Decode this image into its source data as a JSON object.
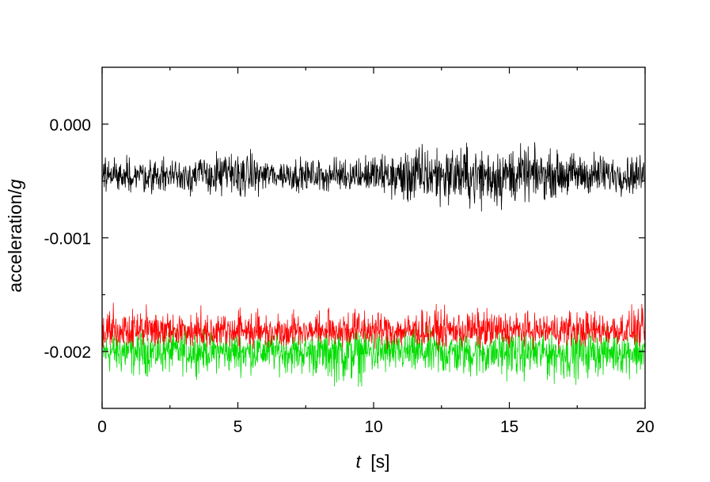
{
  "chart_data": {
    "type": "line",
    "title": "",
    "xlabel_italic": "t",
    "xlabel_unit": "[s]",
    "ylabel_prefix": "acceleration/",
    "ylabel_italic": "g",
    "xlim": [
      0,
      20
    ],
    "ylim": [
      -0.0025,
      0.0005
    ],
    "x_ticks": [
      0,
      5,
      10,
      15,
      20
    ],
    "x_tick_labels": [
      "0",
      "5",
      "10",
      "15",
      "20"
    ],
    "y_ticks": [
      0,
      -0.001,
      -0.002
    ],
    "y_tick_labels": [
      "0.000",
      "-0.001",
      "-0.002"
    ],
    "grid": false,
    "legend": "none",
    "series": [
      {
        "color": "#00dd00",
        "baseline": -0.002,
        "x": [
          0,
          1,
          2,
          3,
          4,
          5,
          6,
          7,
          8,
          9,
          10,
          11,
          12,
          13,
          14,
          15,
          16,
          17,
          18,
          19,
          20
        ],
        "y_max": [
          -0.0018,
          -0.00175,
          -0.0018,
          -0.00175,
          -0.0018,
          -0.0018,
          -0.00178,
          -0.00182,
          -0.0018,
          -0.00175,
          -0.00178,
          -0.0018,
          -0.00178,
          -0.0018,
          -0.0018,
          -0.00178,
          -0.0018,
          -0.00182,
          -0.00178,
          -0.0018,
          -0.00178
        ],
        "y_min": [
          -0.00222,
          -0.00225,
          -0.00222,
          -0.00222,
          -0.0022,
          -0.00222,
          -0.0022,
          -0.00222,
          -0.00225,
          -0.00235,
          -0.00225,
          -0.00222,
          -0.00228,
          -0.00225,
          -0.00228,
          -0.00225,
          -0.00228,
          -0.0023,
          -0.00225,
          -0.00222,
          -0.00225
        ]
      },
      {
        "color": "#ff0000",
        "baseline": -0.00182,
        "x": [
          0,
          1,
          2,
          3,
          4,
          5,
          6,
          7,
          8,
          9,
          10,
          11,
          12,
          13,
          14,
          15,
          16,
          17,
          18,
          19,
          20
        ],
        "y_max": [
          -0.0016,
          -0.00158,
          -0.00162,
          -0.00165,
          -0.0016,
          -0.0016,
          -0.00165,
          -0.00162,
          -0.00165,
          -0.00158,
          -0.0016,
          -0.00165,
          -0.0016,
          -0.00162,
          -0.0016,
          -0.00162,
          -0.00165,
          -0.0016,
          -0.00162,
          -0.0016,
          -0.0016
        ],
        "y_min": [
          -0.002,
          -0.00198,
          -0.00198,
          -0.002,
          -0.00198,
          -0.00198,
          -0.002,
          -0.00198,
          -0.00196,
          -0.00198,
          -0.00198,
          -0.002,
          -0.00198,
          -0.00198,
          -0.002,
          -0.00198,
          -0.00196,
          -0.00198,
          -0.00198,
          -0.00196,
          -0.00198
        ]
      },
      {
        "color": "#000000",
        "baseline": -0.00045,
        "x": [
          0,
          1,
          2,
          3,
          4,
          5,
          6,
          7,
          8,
          9,
          10,
          11,
          12,
          13,
          14,
          15,
          16,
          17,
          18,
          19,
          20
        ],
        "y_max": [
          -0.0003,
          -0.00025,
          -0.0003,
          -0.00025,
          -0.00025,
          -0.0002,
          -0.00028,
          -0.00028,
          -0.0003,
          -0.00025,
          -0.00025,
          -0.00022,
          -0.00012,
          -0.00015,
          -0.00018,
          -0.00015,
          -0.0002,
          -0.00022,
          -0.00022,
          -0.00025,
          -0.00025
        ],
        "y_min": [
          -0.0006,
          -0.00062,
          -0.00062,
          -0.00062,
          -0.00065,
          -0.00068,
          -0.0006,
          -0.0006,
          -0.00062,
          -0.0006,
          -0.00062,
          -0.00075,
          -0.00075,
          -0.00072,
          -0.0008,
          -0.00075,
          -0.00068,
          -0.00065,
          -0.00065,
          -0.00062,
          -0.00065
        ]
      }
    ]
  }
}
